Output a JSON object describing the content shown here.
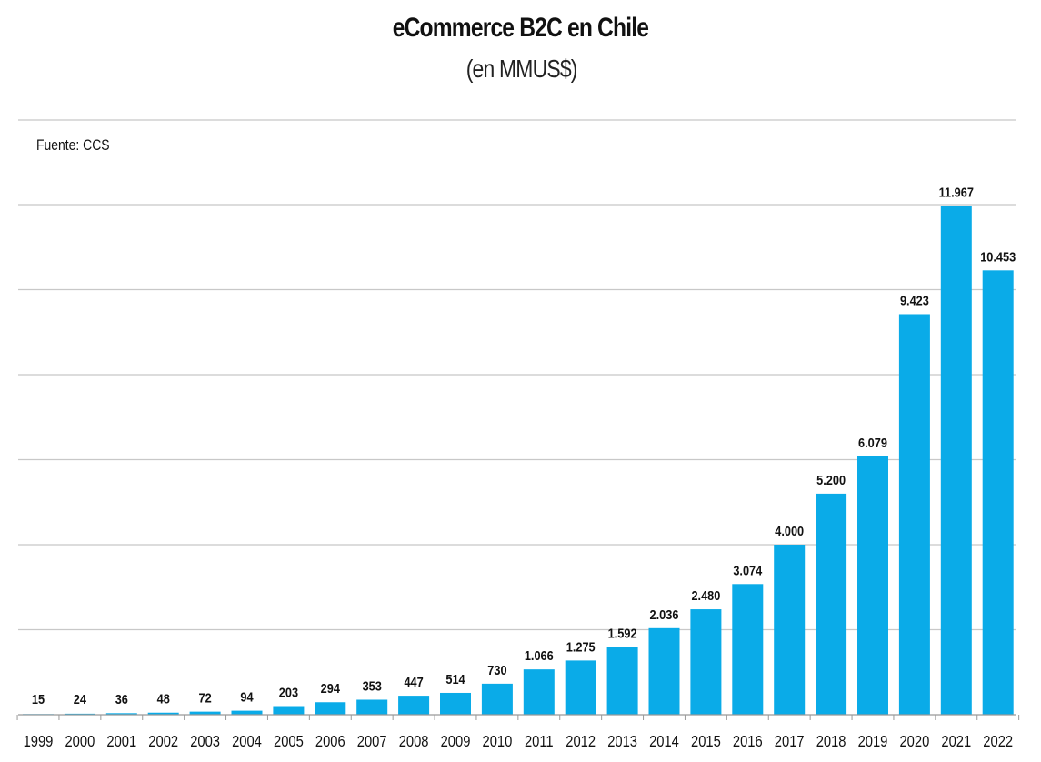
{
  "chart_data": {
    "type": "bar",
    "title": "eCommerce B2C en Chile",
    "subtitle": "(en MMUS$)",
    "source": "Fuente: CCS",
    "xlabel": "",
    "ylabel": "",
    "ylim": [
      0,
      12000
    ],
    "grid": true,
    "bar_color": "#0aabe8",
    "categories": [
      "1999",
      "2000",
      "2001",
      "2002",
      "2003",
      "2004",
      "2005",
      "2006",
      "2007",
      "2008",
      "2009",
      "2010",
      "2011",
      "2012",
      "2013",
      "2014",
      "2015",
      "2016",
      "2017",
      "2018",
      "2019",
      "2020",
      "2021",
      "2022"
    ],
    "values": [
      15,
      24,
      36,
      48,
      72,
      94,
      203,
      294,
      353,
      447,
      514,
      730,
      1066,
      1275,
      1592,
      2036,
      2480,
      3074,
      4000,
      5200,
      6079,
      9423,
      11967,
      10453
    ],
    "value_labels": [
      "15",
      "24",
      "36",
      "48",
      "72",
      "94",
      "203",
      "294",
      "353",
      "447",
      "514",
      "730",
      "1.066",
      "1.275",
      "1.592",
      "2.036",
      "2.480",
      "3.074",
      "4.000",
      "5.200",
      "6.079",
      "9.423",
      "11.967",
      "10.453"
    ]
  }
}
